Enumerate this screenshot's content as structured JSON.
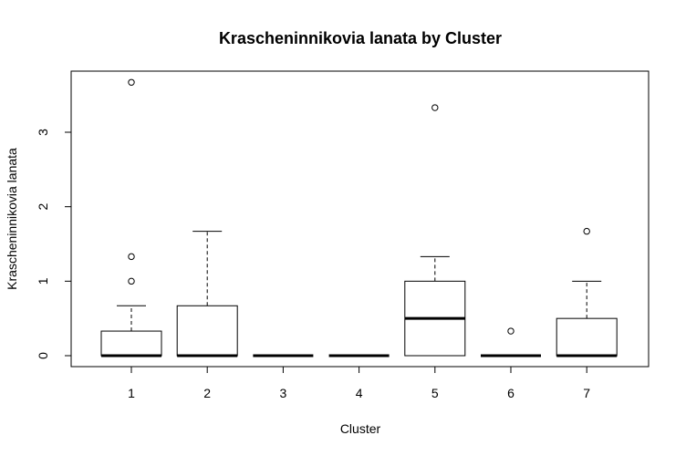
{
  "chart_data": {
    "type": "boxplot",
    "title": "Krascheninnikovia lanata  by Cluster",
    "xlabel": "Cluster",
    "ylabel": "Krascheninnikovia lanata",
    "categories": [
      "1",
      "2",
      "3",
      "4",
      "5",
      "6",
      "7"
    ],
    "y_ticks": [
      0,
      1,
      2,
      3
    ],
    "y_tick_labels": [
      "0",
      "1",
      "2",
      "3"
    ],
    "ylim": [
      -0.15,
      3.8
    ],
    "grid": false,
    "boxes": [
      {
        "cluster": "1",
        "whisker_low": 0,
        "q1": 0,
        "median": 0,
        "q3": 0.33,
        "whisker_high": 0.67,
        "outliers": [
          1.0,
          1.33,
          3.67
        ]
      },
      {
        "cluster": "2",
        "whisker_low": 0,
        "q1": 0,
        "median": 0,
        "q3": 0.67,
        "whisker_high": 1.67,
        "outliers": []
      },
      {
        "cluster": "3",
        "whisker_low": 0,
        "q1": 0,
        "median": 0,
        "q3": 0,
        "whisker_high": 0,
        "outliers": []
      },
      {
        "cluster": "4",
        "whisker_low": 0,
        "q1": 0,
        "median": 0,
        "q3": 0,
        "whisker_high": 0,
        "outliers": []
      },
      {
        "cluster": "5",
        "whisker_low": 0,
        "q1": 0,
        "median": 0.5,
        "q3": 1.0,
        "whisker_high": 1.33,
        "outliers": [
          3.33
        ]
      },
      {
        "cluster": "6",
        "whisker_low": 0,
        "q1": 0,
        "median": 0,
        "q3": 0,
        "whisker_high": 0,
        "outliers": [
          0.33
        ]
      },
      {
        "cluster": "7",
        "whisker_low": 0,
        "q1": 0,
        "median": 0,
        "q3": 0.5,
        "whisker_high": 1.0,
        "outliers": [
          1.67
        ]
      }
    ]
  }
}
